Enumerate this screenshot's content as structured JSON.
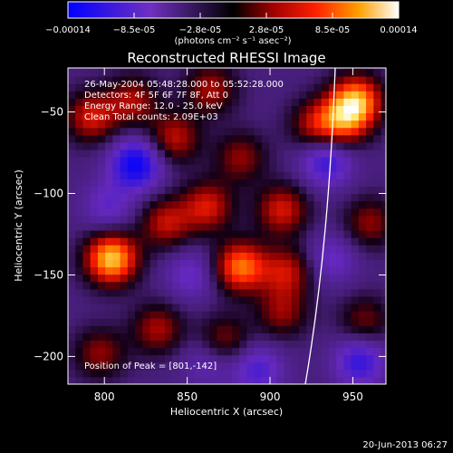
{
  "chart_data": {
    "type": "heatmap",
    "title": "Reconstructed RHESSI Image",
    "xlabel": "Heliocentric X (arcsec)",
    "ylabel": "Heliocentric Y (arcsec)",
    "xlim": [
      778,
      970
    ],
    "ylim": [
      -217,
      -23
    ],
    "xticks": [
      800,
      850,
      900,
      950
    ],
    "yticks": [
      -50,
      -100,
      -150,
      -200
    ],
    "colorbar": {
      "label": "(photons cm⁻² s⁻¹ asec⁻²)",
      "ticks": [
        "-0.00014",
        "-8.5e-05",
        "-2.8e-05",
        "2.8e-05",
        "8.5e-05",
        "0.00014"
      ],
      "min": -0.00014,
      "max": 0.00014
    },
    "annotations": [
      "26-May-2004 05:48:28.000 to 05:52:28.000",
      "Detectors: 4F 5F 6F 7F 8F, Att 0",
      "Energy Range: 12.0 - 25.0 keV",
      "Clean    Total counts: 2.09E+03"
    ],
    "peak_label": "Position of Peak = [801,-142]",
    "sources": [
      {
        "x": 802,
        "y": -142,
        "i": 1.0
      },
      {
        "x": 880,
        "y": -147,
        "i": 0.8
      },
      {
        "x": 905,
        "y": -112,
        "i": 0.55
      },
      {
        "x": 950,
        "y": -45,
        "i": 0.85
      },
      {
        "x": 942,
        "y": -58,
        "i": 0.6
      },
      {
        "x": 790,
        "y": -55,
        "i": 0.55
      },
      {
        "x": 815,
        "y": -45,
        "i": 0.45
      },
      {
        "x": 840,
        "y": -68,
        "i": 0.5
      },
      {
        "x": 862,
        "y": -38,
        "i": 0.45
      },
      {
        "x": 880,
        "y": -80,
        "i": 0.4
      },
      {
        "x": 835,
        "y": -120,
        "i": 0.5
      },
      {
        "x": 860,
        "y": -110,
        "i": 0.55
      },
      {
        "x": 908,
        "y": -150,
        "i": 0.5
      },
      {
        "x": 905,
        "y": -175,
        "i": 0.4
      },
      {
        "x": 830,
        "y": -185,
        "i": 0.45
      },
      {
        "x": 870,
        "y": -192,
        "i": 0.4
      },
      {
        "x": 795,
        "y": -200,
        "i": 0.4
      },
      {
        "x": 955,
        "y": -180,
        "i": 0.35
      },
      {
        "x": 958,
        "y": -120,
        "i": 0.4
      },
      {
        "x": 925,
        "y": -60,
        "i": 0.45
      },
      {
        "x": 817,
        "y": -84,
        "i": -0.7
      },
      {
        "x": 932,
        "y": -82,
        "i": -0.5
      },
      {
        "x": 952,
        "y": -205,
        "i": -0.5
      },
      {
        "x": 890,
        "y": -210,
        "i": -0.4
      },
      {
        "x": 935,
        "y": -142,
        "i": -0.3
      },
      {
        "x": 800,
        "y": -110,
        "i": -0.3
      },
      {
        "x": 850,
        "y": -152,
        "i": -0.3
      },
      {
        "x": 860,
        "y": -205,
        "i": -0.25
      }
    ]
  },
  "footer": {
    "timestamp": "20-Jun-2013 06:27"
  }
}
